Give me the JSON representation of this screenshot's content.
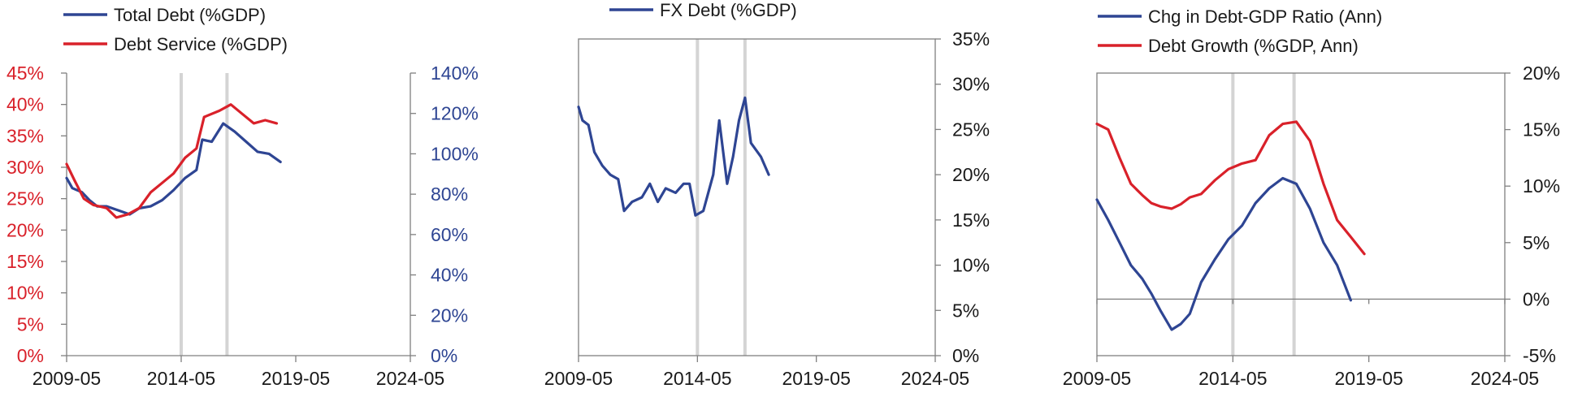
{
  "colors": {
    "blue": "#2e4593",
    "red": "#d9212a",
    "axis": "#7f7f7f",
    "shade": "#d4d4d4",
    "text": "#1a1a1a"
  },
  "chart_data": [
    {
      "type": "line",
      "x_ticks": [
        "2009-05",
        "2014-05",
        "2019-05",
        "2024-05"
      ],
      "xlim": [
        "2009-05",
        "2024-05"
      ],
      "shaded_x": [
        "2014-05",
        "2016-05"
      ],
      "grid": false,
      "legend_position": "top",
      "y_left_ticks": [
        "0%",
        "5%",
        "10%",
        "15%",
        "20%",
        "25%",
        "30%",
        "35%",
        "40%",
        "45%"
      ],
      "y_left_lim": [
        0,
        45
      ],
      "y_right_ticks": [
        "0%",
        "20%",
        "40%",
        "60%",
        "80%",
        "100%",
        "120%",
        "140%"
      ],
      "y_right_lim": [
        0,
        140
      ],
      "series": [
        {
          "name": "Total Debt (%GDP)",
          "color": "blue",
          "axis": "right",
          "points": [
            [
              "2009-05",
              88
            ],
            [
              "2009-08",
              83
            ],
            [
              "2010-01",
              81
            ],
            [
              "2010-05",
              77
            ],
            [
              "2010-09",
              74
            ],
            [
              "2011-02",
              74
            ],
            [
              "2011-08",
              72
            ],
            [
              "2012-02",
              70
            ],
            [
              "2012-07",
              73
            ],
            [
              "2013-01",
              74
            ],
            [
              "2013-07",
              77
            ],
            [
              "2014-01",
              82
            ],
            [
              "2014-07",
              88
            ],
            [
              "2015-01",
              92
            ],
            [
              "2015-04",
              107
            ],
            [
              "2015-09",
              106
            ],
            [
              "2016-03",
              115
            ],
            [
              "2016-09",
              111
            ],
            [
              "2017-03",
              106
            ],
            [
              "2017-09",
              101
            ],
            [
              "2018-03",
              100
            ],
            [
              "2018-09",
              96
            ]
          ]
        },
        {
          "name": "Debt Service (%GDP)",
          "color": "red",
          "axis": "left",
          "points": [
            [
              "2009-05",
              30.5
            ],
            [
              "2009-09",
              28
            ],
            [
              "2010-02",
              25
            ],
            [
              "2010-07",
              24
            ],
            [
              "2011-02",
              23.5
            ],
            [
              "2011-07",
              22
            ],
            [
              "2012-01",
              22.5
            ],
            [
              "2012-07",
              23.5
            ],
            [
              "2013-01",
              26
            ],
            [
              "2013-07",
              27.5
            ],
            [
              "2014-01",
              29
            ],
            [
              "2014-07",
              31.5
            ],
            [
              "2015-01",
              33
            ],
            [
              "2015-05",
              38
            ],
            [
              "2016-01",
              39
            ],
            [
              "2016-07",
              40
            ],
            [
              "2017-01",
              38.5
            ],
            [
              "2017-07",
              37
            ],
            [
              "2018-01",
              37.5
            ],
            [
              "2018-07",
              37
            ]
          ]
        }
      ]
    },
    {
      "type": "line",
      "x_ticks": [
        "2009-05",
        "2014-05",
        "2019-05",
        "2024-05"
      ],
      "xlim": [
        "2009-05",
        "2024-05"
      ],
      "shaded_x": [
        "2014-05",
        "2016-05"
      ],
      "grid": false,
      "legend_position": "top",
      "y_right_ticks": [
        "0%",
        "5%",
        "10%",
        "15%",
        "20%",
        "25%",
        "30%",
        "35%"
      ],
      "y_right_lim": [
        0,
        35
      ],
      "series": [
        {
          "name": "FX Debt (%GDP)",
          "color": "blue",
          "axis": "right",
          "points": [
            [
              "2009-05",
              27.5
            ],
            [
              "2009-07",
              26
            ],
            [
              "2009-10",
              25.5
            ],
            [
              "2010-01",
              22.5
            ],
            [
              "2010-05",
              21
            ],
            [
              "2010-09",
              20
            ],
            [
              "2011-01",
              19.5
            ],
            [
              "2011-04",
              16
            ],
            [
              "2011-08",
              17
            ],
            [
              "2012-01",
              17.5
            ],
            [
              "2012-05",
              19
            ],
            [
              "2012-09",
              17
            ],
            [
              "2013-01",
              18.5
            ],
            [
              "2013-06",
              18
            ],
            [
              "2013-10",
              19
            ],
            [
              "2014-01",
              19
            ],
            [
              "2014-04",
              15.5
            ],
            [
              "2014-08",
              16
            ],
            [
              "2015-01",
              20
            ],
            [
              "2015-04",
              26
            ],
            [
              "2015-08",
              19
            ],
            [
              "2015-11",
              22
            ],
            [
              "2016-02",
              26
            ],
            [
              "2016-05",
              28.5
            ],
            [
              "2016-08",
              23.5
            ],
            [
              "2017-01",
              22
            ],
            [
              "2017-05",
              20
            ]
          ]
        }
      ]
    },
    {
      "type": "line",
      "x_ticks": [
        "2009-05",
        "2014-05",
        "2019-05",
        "2024-05"
      ],
      "xlim": [
        "2009-05",
        "2024-05"
      ],
      "shaded_x": [
        "2014-05",
        "2016-08"
      ],
      "grid": false,
      "legend_position": "top",
      "y_right_ticks": [
        "-5%",
        "0%",
        "5%",
        "10%",
        "15%",
        "20%"
      ],
      "y_right_lim": [
        -5,
        20
      ],
      "series": [
        {
          "name": "Chg in Debt-GDP Ratio (Ann)",
          "color": "blue",
          "axis": "right",
          "points": [
            [
              "2009-05",
              8.8
            ],
            [
              "2009-10",
              7
            ],
            [
              "2010-03",
              5
            ],
            [
              "2010-08",
              3
            ],
            [
              "2011-01",
              1.8
            ],
            [
              "2011-05",
              0.5
            ],
            [
              "2011-09",
              -1
            ],
            [
              "2012-02",
              -2.7
            ],
            [
              "2012-06",
              -2.2
            ],
            [
              "2012-10",
              -1.3
            ],
            [
              "2013-03",
              1.5
            ],
            [
              "2013-09",
              3.5
            ],
            [
              "2014-03",
              5.3
            ],
            [
              "2014-09",
              6.5
            ],
            [
              "2015-03",
              8.5
            ],
            [
              "2015-09",
              9.8
            ],
            [
              "2016-03",
              10.7
            ],
            [
              "2016-09",
              10.2
            ],
            [
              "2017-03",
              8
            ],
            [
              "2017-09",
              5
            ],
            [
              "2018-03",
              3
            ],
            [
              "2018-09",
              -0.1
            ]
          ]
        },
        {
          "name": "Debt Growth (%GDP, Ann)",
          "color": "red",
          "axis": "right",
          "points": [
            [
              "2009-05",
              15.5
            ],
            [
              "2009-10",
              15
            ],
            [
              "2010-03",
              12.5
            ],
            [
              "2010-08",
              10.2
            ],
            [
              "2011-01",
              9.2
            ],
            [
              "2011-05",
              8.5
            ],
            [
              "2011-09",
              8.2
            ],
            [
              "2012-02",
              8
            ],
            [
              "2012-06",
              8.4
            ],
            [
              "2012-10",
              9
            ],
            [
              "2013-03",
              9.3
            ],
            [
              "2013-09",
              10.5
            ],
            [
              "2014-03",
              11.5
            ],
            [
              "2014-09",
              12
            ],
            [
              "2015-03",
              12.3
            ],
            [
              "2015-09",
              14.5
            ],
            [
              "2016-03",
              15.5
            ],
            [
              "2016-09",
              15.7
            ],
            [
              "2017-03",
              14
            ],
            [
              "2017-09",
              10.2
            ],
            [
              "2018-03",
              7
            ],
            [
              "2018-09",
              5.5
            ],
            [
              "2019-03",
              4
            ]
          ]
        }
      ]
    }
  ]
}
